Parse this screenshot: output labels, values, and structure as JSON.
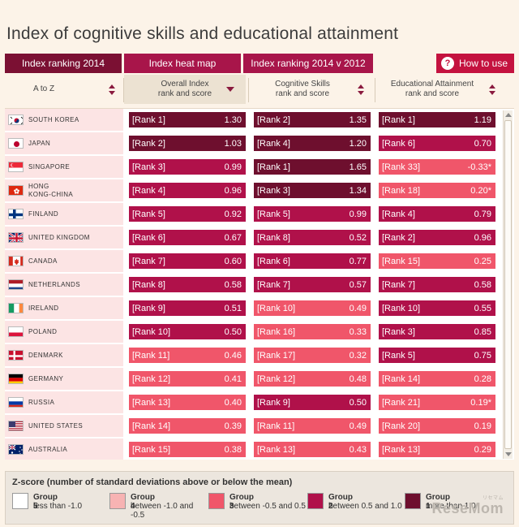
{
  "page_title": "Index of cognitive skills and educational attainment",
  "tabs": [
    "Index ranking 2014",
    "Index heat map",
    "Index ranking 2014 v 2012"
  ],
  "how_to_use": "How to use",
  "columns": {
    "a_to_z": "A to Z",
    "overall": "Overall Index\nrank and score",
    "cognitive": "Cognitive Skills\nrank and score",
    "education": "Educational Attainment\nrank and score"
  },
  "rows": [
    {
      "country": "SOUTH KOREA",
      "flag": "kr",
      "overall": {
        "rank": "[Rank 1]",
        "score": "1.30",
        "group": 1
      },
      "cognitive": {
        "rank": "[Rank 2]",
        "score": "1.35",
        "group": 1
      },
      "education": {
        "rank": "[Rank 1]",
        "score": "1.19",
        "group": 1
      }
    },
    {
      "country": "JAPAN",
      "flag": "jp",
      "overall": {
        "rank": "[Rank 2]",
        "score": "1.03",
        "group": 1
      },
      "cognitive": {
        "rank": "[Rank 4]",
        "score": "1.20",
        "group": 1
      },
      "education": {
        "rank": "[Rank 6]",
        "score": "0.70",
        "group": 2
      }
    },
    {
      "country": "SINGAPORE",
      "flag": "sg",
      "overall": {
        "rank": "[Rank 3]",
        "score": "0.99",
        "group": 2
      },
      "cognitive": {
        "rank": "[Rank 1]",
        "score": "1.65",
        "group": 1
      },
      "education": {
        "rank": "[Rank 33]",
        "score": "-0.33*",
        "group": 3
      }
    },
    {
      "country": "HONG\nKONG-CHINA",
      "flag": "hk",
      "overall": {
        "rank": "[Rank 4]",
        "score": "0.96",
        "group": 2
      },
      "cognitive": {
        "rank": "[Rank 3]",
        "score": "1.34",
        "group": 1
      },
      "education": {
        "rank": "[Rank 18]",
        "score": "0.20*",
        "group": 3
      }
    },
    {
      "country": "FINLAND",
      "flag": "fi",
      "overall": {
        "rank": "[Rank 5]",
        "score": "0.92",
        "group": 2
      },
      "cognitive": {
        "rank": "[Rank 5]",
        "score": "0.99",
        "group": 2
      },
      "education": {
        "rank": "[Rank 4]",
        "score": "0.79",
        "group": 2
      }
    },
    {
      "country": "UNITED KINGDOM",
      "flag": "uk",
      "overall": {
        "rank": "[Rank 6]",
        "score": "0.67",
        "group": 2
      },
      "cognitive": {
        "rank": "[Rank 8]",
        "score": "0.52",
        "group": 2
      },
      "education": {
        "rank": "[Rank 2]",
        "score": "0.96",
        "group": 2
      }
    },
    {
      "country": "CANADA",
      "flag": "ca",
      "overall": {
        "rank": "[Rank 7]",
        "score": "0.60",
        "group": 2
      },
      "cognitive": {
        "rank": "[Rank 6]",
        "score": "0.77",
        "group": 2
      },
      "education": {
        "rank": "[Rank 15]",
        "score": "0.25",
        "group": 3
      }
    },
    {
      "country": "NETHERLANDS",
      "flag": "nl",
      "overall": {
        "rank": "[Rank 8]",
        "score": "0.58",
        "group": 2
      },
      "cognitive": {
        "rank": "[Rank 7]",
        "score": "0.57",
        "group": 2
      },
      "education": {
        "rank": "[Rank 7]",
        "score": "0.58",
        "group": 2
      }
    },
    {
      "country": "IRELAND",
      "flag": "ie",
      "overall": {
        "rank": "[Rank 9]",
        "score": "0.51",
        "group": 2
      },
      "cognitive": {
        "rank": "[Rank 10]",
        "score": "0.49",
        "group": 3
      },
      "education": {
        "rank": "[Rank 10]",
        "score": "0.55",
        "group": 2
      }
    },
    {
      "country": "POLAND",
      "flag": "pl",
      "overall": {
        "rank": "[Rank 10]",
        "score": "0.50",
        "group": 2
      },
      "cognitive": {
        "rank": "[Rank 16]",
        "score": "0.33",
        "group": 3
      },
      "education": {
        "rank": "[Rank 3]",
        "score": "0.85",
        "group": 2
      }
    },
    {
      "country": "DENMARK",
      "flag": "dk",
      "overall": {
        "rank": "[Rank 11]",
        "score": "0.46",
        "group": 3
      },
      "cognitive": {
        "rank": "[Rank 17]",
        "score": "0.32",
        "group": 3
      },
      "education": {
        "rank": "[Rank 5]",
        "score": "0.75",
        "group": 2
      }
    },
    {
      "country": "GERMANY",
      "flag": "de",
      "overall": {
        "rank": "[Rank 12]",
        "score": "0.41",
        "group": 3
      },
      "cognitive": {
        "rank": "[Rank 12]",
        "score": "0.48",
        "group": 3
      },
      "education": {
        "rank": "[Rank 14]",
        "score": "0.28",
        "group": 3
      }
    },
    {
      "country": "RUSSIA",
      "flag": "ru",
      "overall": {
        "rank": "[Rank 13]",
        "score": "0.40",
        "group": 3
      },
      "cognitive": {
        "rank": "[Rank 9]",
        "score": "0.50",
        "group": 2
      },
      "education": {
        "rank": "[Rank 21]",
        "score": "0.19*",
        "group": 3
      }
    },
    {
      "country": "UNITED STATES",
      "flag": "us",
      "overall": {
        "rank": "[Rank 14]",
        "score": "0.39",
        "group": 3
      },
      "cognitive": {
        "rank": "[Rank 11]",
        "score": "0.49",
        "group": 3
      },
      "education": {
        "rank": "[Rank 20]",
        "score": "0.19",
        "group": 3
      }
    },
    {
      "country": "AUSTRALIA",
      "flag": "au",
      "overall": {
        "rank": "[Rank 15]",
        "score": "0.38",
        "group": 3
      },
      "cognitive": {
        "rank": "[Rank 13]",
        "score": "0.43",
        "group": 3
      },
      "education": {
        "rank": "[Rank 13]",
        "score": "0.29",
        "group": 3
      }
    }
  ],
  "legend": {
    "title": "Z-score (number of standard deviations above or below the mean)",
    "groups": [
      {
        "name": "Group 5",
        "desc": "less than -1.0",
        "group": 5
      },
      {
        "name": "Group 4",
        "desc": "between -1.0 and -0.5",
        "group": 4
      },
      {
        "name": "Group 3",
        "desc": "between -0.5 and 0.5",
        "group": 3
      },
      {
        "name": "Group 2",
        "desc": "between 0.5 and 1.0",
        "group": 2
      },
      {
        "name": "Group 1",
        "desc": "more than 1.0",
        "group": 1
      }
    ]
  },
  "watermark": "ReseMom",
  "watermark_small": "リセマム"
}
